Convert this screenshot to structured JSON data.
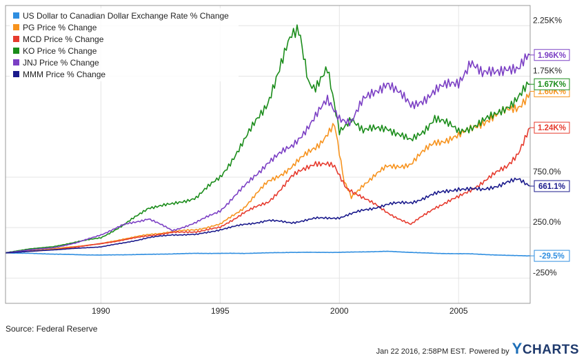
{
  "chart_data": {
    "type": "line",
    "x_range": [
      1986.0,
      2008.0
    ],
    "y_range": [
      -500,
      2450
    ],
    "x_ticks": [
      {
        "value": 1990,
        "label": "1990"
      },
      {
        "value": 1995,
        "label": "1995"
      },
      {
        "value": 2000,
        "label": "2000"
      },
      {
        "value": 2005,
        "label": "2005"
      }
    ],
    "y_ticks": [
      {
        "value": 2250,
        "label": "2.25K%"
      },
      {
        "value": 1750,
        "label": "1.75K%"
      },
      {
        "value": 750,
        "label": "750.0%"
      },
      {
        "value": 250,
        "label": "250.0%"
      },
      {
        "value": -250,
        "label": "-250%"
      }
    ],
    "grid": true,
    "legend_position": "top-left",
    "series": [
      {
        "name": "US Dollar to Canadian Dollar Exchange Rate % Change",
        "color": "#2f8ee0",
        "end_label": "-29.5%",
        "end_value": -29.5,
        "points": [
          [
            1986.0,
            0
          ],
          [
            1987.0,
            -5
          ],
          [
            1988.0,
            -12
          ],
          [
            1989.0,
            -18
          ],
          [
            1990.0,
            -22
          ],
          [
            1992.0,
            -15
          ],
          [
            1994.0,
            -5
          ],
          [
            1996.0,
            -5
          ],
          [
            1998.0,
            5
          ],
          [
            2000.0,
            5
          ],
          [
            2002.0,
            15
          ],
          [
            2003.0,
            5
          ],
          [
            2004.0,
            -5
          ],
          [
            2005.5,
            -10
          ],
          [
            2007.0,
            -25
          ],
          [
            2008.0,
            -29.5
          ]
        ]
      },
      {
        "name": "PG Price % Change",
        "color": "#f7931e",
        "end_label": "1.60K%",
        "end_value": 1600,
        "points": [
          [
            1986.0,
            0
          ],
          [
            1988.0,
            40
          ],
          [
            1990.0,
            90
          ],
          [
            1991.0,
            140
          ],
          [
            1992.0,
            180
          ],
          [
            1993.0,
            210
          ],
          [
            1994.0,
            230
          ],
          [
            1995.0,
            280
          ],
          [
            1996.0,
            450
          ],
          [
            1997.0,
            700
          ],
          [
            1998.0,
            850
          ],
          [
            1999.0,
            1050
          ],
          [
            1999.8,
            1250
          ],
          [
            2000.2,
            700
          ],
          [
            2000.5,
            550
          ],
          [
            2001.0,
            680
          ],
          [
            2002.0,
            850
          ],
          [
            2003.0,
            880
          ],
          [
            2004.0,
            1100
          ],
          [
            2005.0,
            1150
          ],
          [
            2006.0,
            1300
          ],
          [
            2007.0,
            1400
          ],
          [
            2007.5,
            1450
          ],
          [
            2008.0,
            1600
          ]
        ]
      },
      {
        "name": "MCD Price % Change",
        "color": "#e63b2e",
        "end_label": "1.24K%",
        "end_value": 1240,
        "points": [
          [
            1986.0,
            0
          ],
          [
            1988.0,
            30
          ],
          [
            1990.0,
            90
          ],
          [
            1991.0,
            130
          ],
          [
            1992.0,
            170
          ],
          [
            1993.0,
            200
          ],
          [
            1994.0,
            210
          ],
          [
            1995.0,
            250
          ],
          [
            1996.0,
            400
          ],
          [
            1997.0,
            500
          ],
          [
            1998.0,
            750
          ],
          [
            1999.0,
            900
          ],
          [
            1999.8,
            850
          ],
          [
            2000.3,
            650
          ],
          [
            2001.0,
            550
          ],
          [
            2002.0,
            400
          ],
          [
            2003.0,
            280
          ],
          [
            2004.0,
            450
          ],
          [
            2005.0,
            550
          ],
          [
            2006.0,
            700
          ],
          [
            2007.0,
            850
          ],
          [
            2007.5,
            1000
          ],
          [
            2008.0,
            1240
          ]
        ]
      },
      {
        "name": "KO Price % Change",
        "color": "#1a8c1a",
        "end_label": "1.67K%",
        "end_value": 1670,
        "points": [
          [
            1986.0,
            0
          ],
          [
            1987.0,
            40
          ],
          [
            1988.0,
            60
          ],
          [
            1989.0,
            110
          ],
          [
            1990.0,
            150
          ],
          [
            1991.0,
            280
          ],
          [
            1992.0,
            450
          ],
          [
            1993.0,
            480
          ],
          [
            1994.0,
            550
          ],
          [
            1995.0,
            750
          ],
          [
            1996.0,
            1100
          ],
          [
            1997.0,
            1500
          ],
          [
            1997.7,
            2000
          ],
          [
            1998.3,
            2250
          ],
          [
            1998.7,
            1700
          ],
          [
            1999.0,
            1650
          ],
          [
            1999.5,
            1800
          ],
          [
            2000.0,
            1200
          ],
          [
            2000.5,
            1350
          ],
          [
            2001.0,
            1200
          ],
          [
            2002.0,
            1250
          ],
          [
            2003.0,
            1100
          ],
          [
            2003.5,
            1200
          ],
          [
            2004.0,
            1350
          ],
          [
            2005.0,
            1200
          ],
          [
            2006.0,
            1300
          ],
          [
            2006.5,
            1350
          ],
          [
            2007.0,
            1450
          ],
          [
            2007.5,
            1550
          ],
          [
            2008.0,
            1670
          ]
        ]
      },
      {
        "name": "JNJ Price % Change",
        "color": "#7b3fc4",
        "end_label": "1.96K%",
        "end_value": 1960,
        "points": [
          [
            1986.0,
            0
          ],
          [
            1987.0,
            30
          ],
          [
            1988.0,
            50
          ],
          [
            1989.0,
            100
          ],
          [
            1990.0,
            180
          ],
          [
            1991.0,
            280
          ],
          [
            1992.0,
            340
          ],
          [
            1993.0,
            220
          ],
          [
            1994.0,
            300
          ],
          [
            1995.0,
            420
          ],
          [
            1996.0,
            650
          ],
          [
            1997.0,
            900
          ],
          [
            1998.0,
            1050
          ],
          [
            1999.0,
            1350
          ],
          [
            1999.5,
            1500
          ],
          [
            2000.0,
            1350
          ],
          [
            2000.5,
            1300
          ],
          [
            2001.0,
            1500
          ],
          [
            2002.0,
            1700
          ],
          [
            2003.0,
            1450
          ],
          [
            2004.0,
            1600
          ],
          [
            2005.0,
            1700
          ],
          [
            2005.5,
            1900
          ],
          [
            2006.0,
            1750
          ],
          [
            2007.0,
            1850
          ],
          [
            2007.5,
            1800
          ],
          [
            2008.0,
            1960
          ]
        ]
      },
      {
        "name": "MMM Price % Change",
        "color": "#1a1a8c",
        "end_label": "661.1%",
        "end_value": 661.1,
        "points": [
          [
            1986.0,
            0
          ],
          [
            1988.0,
            30
          ],
          [
            1990.0,
            60
          ],
          [
            1991.0,
            100
          ],
          [
            1992.0,
            150
          ],
          [
            1993.0,
            180
          ],
          [
            1994.0,
            180
          ],
          [
            1995.0,
            230
          ],
          [
            1996.0,
            280
          ],
          [
            1997.0,
            320
          ],
          [
            1998.0,
            300
          ],
          [
            1999.0,
            340
          ],
          [
            2000.0,
            350
          ],
          [
            2001.0,
            420
          ],
          [
            2002.0,
            480
          ],
          [
            2003.0,
            500
          ],
          [
            2004.0,
            580
          ],
          [
            2005.0,
            640
          ],
          [
            2006.0,
            620
          ],
          [
            2007.0,
            700
          ],
          [
            2007.5,
            720
          ],
          [
            2008.0,
            661.1
          ]
        ]
      }
    ]
  },
  "footer": {
    "source": "Source: Federal Reserve",
    "timestamp": "Jan 22 2016, 2:58PM EST.",
    "powered_by": "Powered by",
    "brand": "YCHARTS"
  }
}
